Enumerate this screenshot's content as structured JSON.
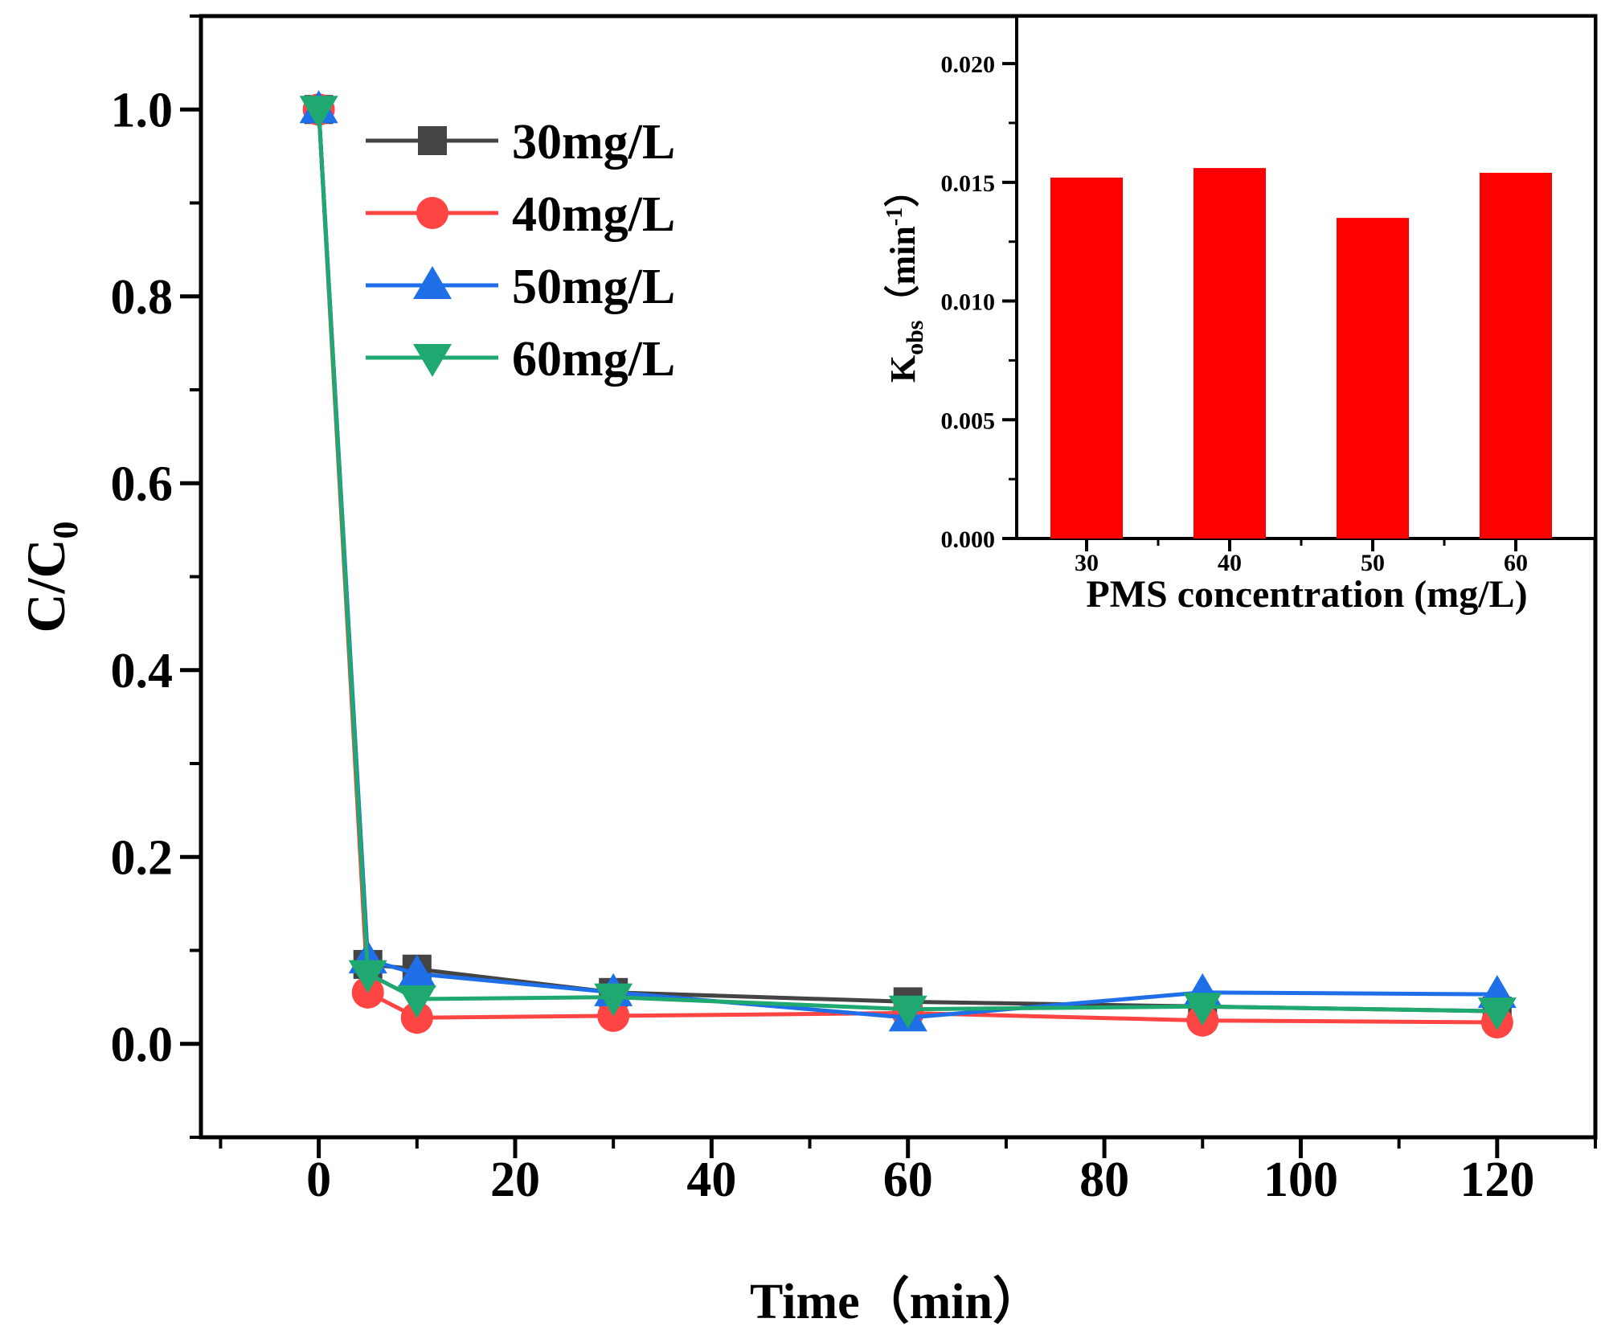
{
  "chart_data": [
    {
      "type": "line",
      "title": "",
      "xlabel": "Time（min）",
      "ylabel": "C/C",
      "ylabel_sub": "0",
      "xlim": [
        -12,
        130
      ],
      "ylim": [
        -0.1,
        1.1
      ],
      "xticks": [
        0,
        20,
        40,
        60,
        80,
        100,
        120
      ],
      "yticks": [
        0.0,
        0.2,
        0.4,
        0.6,
        0.8,
        1.0
      ],
      "xtick_labels": [
        "0",
        "20",
        "40",
        "60",
        "80",
        "100",
        "120"
      ],
      "ytick_labels": [
        "0.0",
        "0.2",
        "0.4",
        "0.6",
        "0.8",
        "1.0"
      ],
      "x": [
        0,
        5,
        10,
        30,
        60,
        90,
        120
      ],
      "legend_position": "top-left",
      "series": [
        {
          "name": "30mg/L",
          "color": "#444444",
          "marker": "square",
          "values": [
            1.0,
            0.085,
            0.08,
            0.055,
            0.045,
            0.04,
            0.035
          ]
        },
        {
          "name": "40mg/L",
          "color": "#ff4444",
          "marker": "circle",
          "values": [
            1.0,
            0.055,
            0.028,
            0.03,
            0.033,
            0.025,
            0.023
          ]
        },
        {
          "name": "50mg/L",
          "color": "#1e6fe8",
          "marker": "triangle-up",
          "values": [
            1.0,
            0.09,
            0.075,
            0.055,
            0.028,
            0.055,
            0.053
          ]
        },
        {
          "name": "60mg/L",
          "color": "#1fa870",
          "marker": "triangle-down",
          "values": [
            1.0,
            0.075,
            0.048,
            0.05,
            0.037,
            0.04,
            0.035
          ]
        }
      ]
    },
    {
      "type": "bar",
      "title": "",
      "xlabel": "PMS concentration (mg/L)",
      "ylabel_main": "K",
      "ylabel_sub": "obs",
      "ylabel_unit_open": "（min",
      "ylabel_sup": "-1",
      "ylabel_unit_close": "）",
      "ylim": [
        0.0,
        0.022
      ],
      "yticks": [
        0.0,
        0.005,
        0.01,
        0.015,
        0.02
      ],
      "ytick_labels": [
        "0.000",
        "0.005",
        "0.010",
        "0.015",
        "0.020"
      ],
      "categories": [
        "30",
        "40",
        "50",
        "60"
      ],
      "values": [
        0.0152,
        0.0156,
        0.0135,
        0.0154
      ],
      "bar_color": "#ff0000"
    }
  ]
}
